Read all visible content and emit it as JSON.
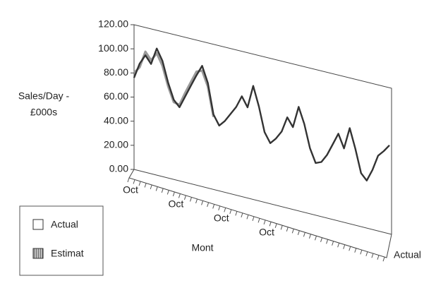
{
  "chart_data": {
    "type": "line3d",
    "ylabel": [
      "Sales/Day -",
      "£000s"
    ],
    "xlabel": "Mont",
    "categories": [
      "Oct",
      null,
      null,
      null,
      null,
      null,
      null,
      null,
      "Oct",
      null,
      null,
      null,
      null,
      null,
      null,
      null,
      "Oct",
      null,
      null,
      null,
      null,
      null,
      null,
      null,
      "Oct",
      null,
      null,
      null,
      null,
      null,
      null,
      null,
      null,
      null,
      null,
      null,
      null,
      null,
      null,
      null,
      null,
      null,
      null,
      null,
      null,
      null
    ],
    "series": [
      {
        "name": "Actual",
        "color": "#333333",
        "values": [
          76,
          89,
          97,
          91,
          105,
          96,
          79,
          66,
          61,
          71,
          81,
          91,
          100,
          87,
          62,
          54,
          59,
          66,
          73,
          83,
          75,
          94,
          78,
          58,
          50,
          55,
          62,
          75,
          68,
          86,
          73,
          54,
          43,
          45,
          52,
          62,
          72,
          61,
          79,
          63,
          44,
          39,
          49,
          62,
          67,
          73
        ]
      },
      {
        "name": "Estimat",
        "color": "#9a9a9a",
        "values": [
          80,
          86,
          100,
          94,
          101,
          92,
          76,
          64,
          63,
          74,
          84,
          94,
          96,
          84,
          60,
          null,
          null,
          null,
          null,
          null,
          null,
          null,
          null,
          null,
          null,
          null,
          null,
          null,
          null,
          null,
          null,
          null,
          null,
          null,
          null,
          null,
          null,
          null,
          null,
          null,
          null,
          null,
          null,
          null,
          null,
          null
        ]
      }
    ],
    "ylim": [
      0,
      120
    ],
    "yticks": [
      {
        "value": 0,
        "label": "0.00"
      },
      {
        "value": 20,
        "label": "20.00"
      },
      {
        "value": 40,
        "label": "40.00"
      },
      {
        "value": 60,
        "label": "60.00"
      },
      {
        "value": 80,
        "label": "80.00"
      },
      {
        "value": 100,
        "label": "100.00"
      },
      {
        "value": 120,
        "label": "120.00"
      }
    ]
  }
}
